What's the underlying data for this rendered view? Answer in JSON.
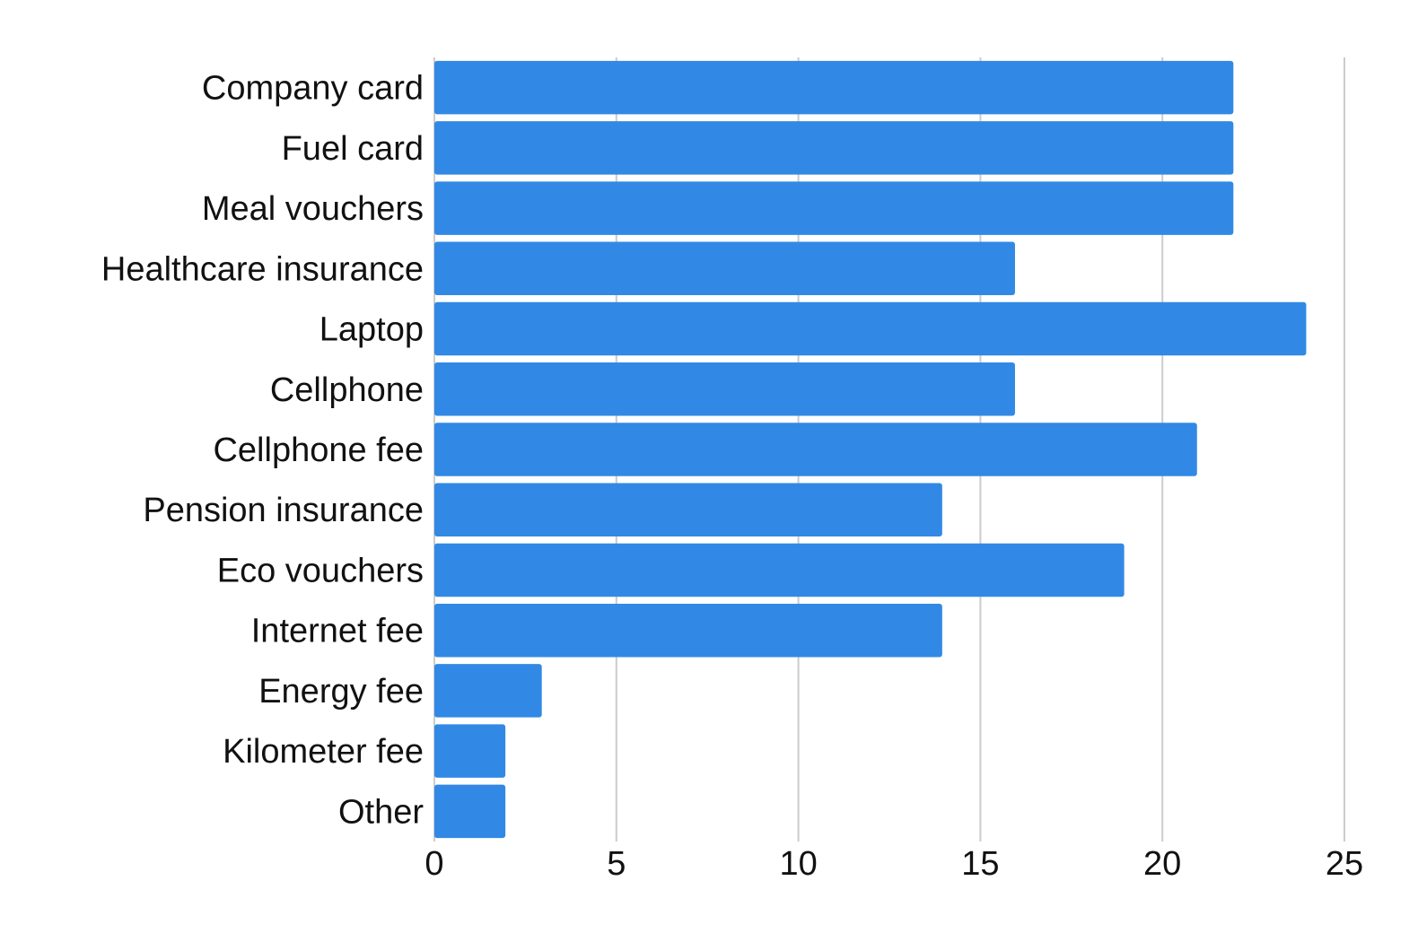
{
  "chart_data": {
    "type": "bar",
    "orientation": "horizontal",
    "title": "",
    "xlabel": "",
    "ylabel": "",
    "categories": [
      "Company card",
      "Fuel card",
      "Meal vouchers",
      "Healthcare insurance",
      "Laptop",
      "Cellphone",
      "Cellphone fee",
      "Pension insurance",
      "Eco vouchers",
      "Internet fee",
      "Energy fee",
      "Kilometer fee",
      "Other"
    ],
    "values": [
      22,
      22,
      22,
      16,
      24,
      16,
      21,
      14,
      19,
      14,
      3,
      2,
      2
    ],
    "xlim": [
      0,
      25
    ],
    "x_ticks": [
      "0",
      "5",
      "10",
      "15",
      "20",
      "25"
    ],
    "grid": "vertical",
    "legend": "none",
    "bar_color": "#3189e5"
  }
}
